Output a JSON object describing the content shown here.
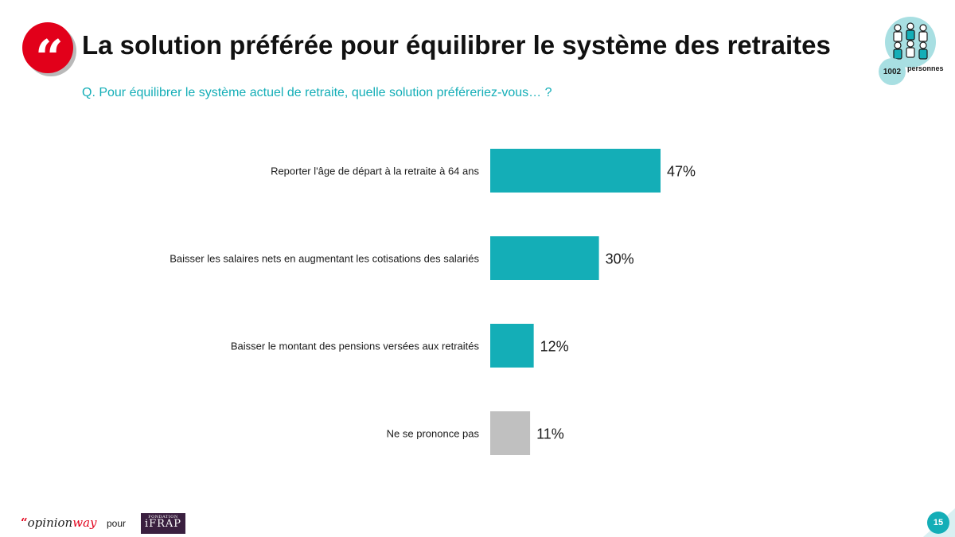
{
  "header": {
    "title": "La solution préférée pour équilibrer le système des retraites",
    "question": "Q. Pour équilibrer le système actuel de retraite, quelle solution préféreriez-vous… ?",
    "quote_mark": "“"
  },
  "sample": {
    "count": "1002",
    "unit": "personnes",
    "icon": "people-group-icon"
  },
  "colors": {
    "accent": "#14aeb7",
    "neutral": "#c0c0c0",
    "brand_red": "#e2001a"
  },
  "chart_data": {
    "type": "bar",
    "orientation": "horizontal",
    "categories": [
      "Reporter l'âge de départ à la retraite à 64 ans",
      "Baisser les salaires nets en augmentant les cotisations des salariés",
      "Baisser le montant des pensions versées aux retraités",
      "Ne se prononce pas"
    ],
    "values": [
      47,
      30,
      12,
      11
    ],
    "value_labels": [
      "47%",
      "30%",
      "12%",
      "11%"
    ],
    "bar_colors": [
      "#14aeb7",
      "#14aeb7",
      "#14aeb7",
      "#c0c0c0"
    ],
    "xlim": [
      0,
      100
    ],
    "grid": false,
    "legend": "none"
  },
  "footer": {
    "brand_quote": "“",
    "brand_opinion": "opinion",
    "brand_way": "way",
    "pour": "pour",
    "partner_small": "FONDATION",
    "partner_name": "iFRAP",
    "page_number": "15"
  }
}
